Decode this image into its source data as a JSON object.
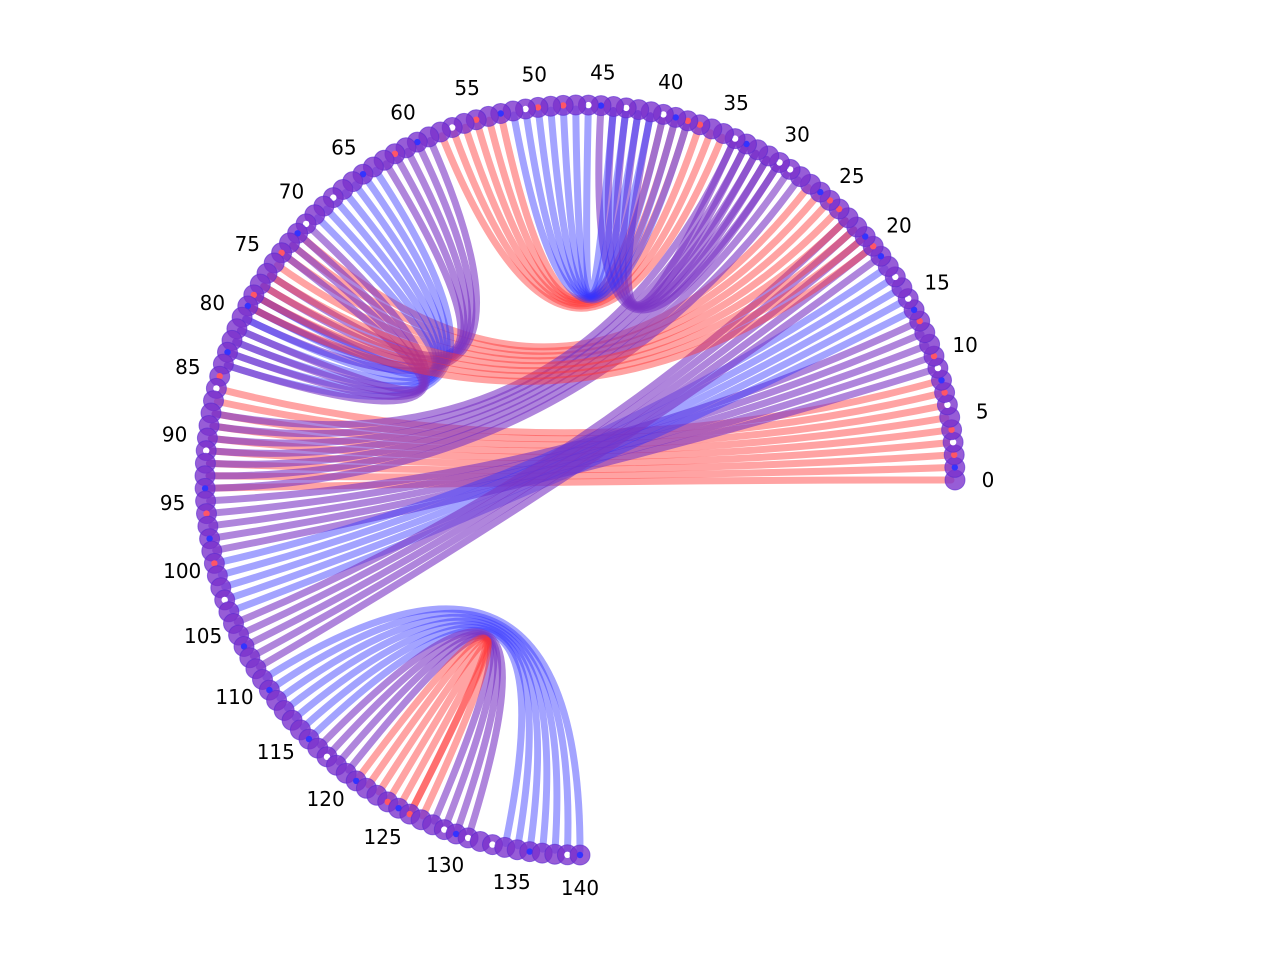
{
  "diagram": {
    "type": "chord",
    "node_count": 141,
    "labeled_indices": [
      0,
      5,
      10,
      15,
      20,
      25,
      30,
      35,
      40,
      45,
      50,
      55,
      60,
      65,
      70,
      75,
      80,
      85,
      90,
      95,
      100,
      105,
      110,
      115,
      120,
      125,
      130,
      135,
      140
    ],
    "label_text": [
      "0",
      "5",
      "10",
      "15",
      "20",
      "25",
      "30",
      "35",
      "40",
      "45",
      "50",
      "55",
      "60",
      "65",
      "70",
      "75",
      "80",
      "85",
      "90",
      "95",
      "100",
      "105",
      "110",
      "115",
      "120",
      "125",
      "130",
      "135",
      "140"
    ],
    "colors": {
      "red": "#ff3333",
      "blue": "#3333ff",
      "purple": "#7a33c4",
      "node_fill": "#7a2fcc",
      "node_stroke": "#5a2ad0",
      "red_dot": "#ff5566",
      "blue_dot": "#3333ff",
      "white_dot": "#ffffff"
    },
    "groups": [
      {
        "from_start": 0,
        "from_end": 8,
        "to_start": 86,
        "to_end": 94,
        "color": "red"
      },
      {
        "from_start": 9,
        "from_end": 13,
        "to_start": 95,
        "to_end": 99,
        "color": "purple"
      },
      {
        "from_start": 14,
        "from_end": 18,
        "to_start": 100,
        "to_end": 104,
        "color": "blue"
      },
      {
        "from_start": 19,
        "from_end": 23,
        "to_start": 105,
        "to_end": 109,
        "color": "purple"
      },
      {
        "from_start": 24,
        "from_end": 27,
        "to_start": 72,
        "to_end": 75,
        "color": "red"
      },
      {
        "from_start": 28,
        "from_end": 34,
        "to_start": 88,
        "to_end": 94,
        "color": "purple"
      },
      {
        "from_start": 35,
        "from_end": 40,
        "to_start": 53,
        "to_end": 58,
        "color": "red"
      },
      {
        "from_start": 41,
        "from_end": 45,
        "to_start": 30,
        "to_end": 34,
        "color": "purple"
      },
      {
        "from_start": 46,
        "from_end": 52,
        "to_start": 38,
        "to_end": 44,
        "color": "blue"
      },
      {
        "from_start": 59,
        "from_end": 63,
        "to_start": 76,
        "to_end": 80,
        "color": "purple"
      },
      {
        "from_start": 64,
        "from_end": 70,
        "to_start": 78,
        "to_end": 84,
        "color": "blue"
      },
      {
        "from_start": 71,
        "from_end": 74,
        "to_start": 81,
        "to_end": 84,
        "color": "purple"
      },
      {
        "from_start": 76,
        "from_end": 79,
        "to_start": 20,
        "to_end": 23,
        "color": "red"
      },
      {
        "from_start": 110,
        "from_end": 116,
        "to_start": 134,
        "to_end": 140,
        "color": "blue"
      },
      {
        "from_start": 117,
        "from_end": 120,
        "to_start": 128,
        "to_end": 131,
        "color": "purple"
      },
      {
        "from_start": 121,
        "from_end": 124,
        "to_start": 125,
        "to_end": 127,
        "color": "red"
      }
    ],
    "node_dots": {
      "red": [
        2,
        4,
        7,
        10,
        13,
        20,
        24,
        25,
        37,
        38,
        48,
        50,
        55,
        62,
        74,
        78,
        85,
        96,
        100,
        124,
        126
      ],
      "white": [
        3,
        6,
        9,
        15,
        17,
        29,
        30,
        34,
        40,
        43,
        46,
        51,
        57,
        68,
        71,
        86,
        91,
        103,
        118,
        129,
        131,
        133,
        139
      ],
      "blue": [
        1,
        8,
        14,
        19,
        21,
        26,
        33,
        39,
        45,
        53,
        60,
        65,
        72,
        79,
        83,
        94,
        98,
        107,
        111,
        116,
        121,
        125,
        130,
        136,
        140
      ]
    }
  }
}
